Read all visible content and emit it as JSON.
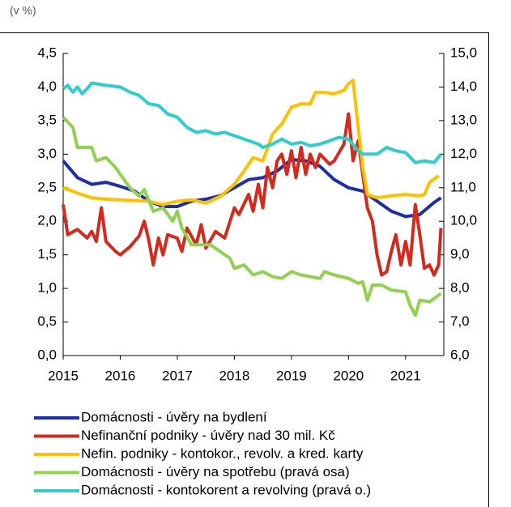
{
  "chart_data": {
    "type": "line",
    "unit_label": "(v %)",
    "xlim": [
      2015,
      2021.67
    ],
    "xticks": [
      2015,
      2016,
      2017,
      2018,
      2019,
      2020,
      2021
    ],
    "ylim": [
      0,
      4.5
    ],
    "yticks": [
      {
        "value": 0,
        "label": "0,0"
      },
      {
        "value": 0.5,
        "label": "0,5"
      },
      {
        "value": 1,
        "label": "1,0"
      },
      {
        "value": 1.5,
        "label": "1,5"
      },
      {
        "value": 2,
        "label": "2,0"
      },
      {
        "value": 2.5,
        "label": "2,5"
      },
      {
        "value": 3,
        "label": "3,0"
      },
      {
        "value": 3.5,
        "label": "3,5"
      },
      {
        "value": 4,
        "label": "4,0"
      },
      {
        "value": 4.5,
        "label": "4,5"
      }
    ],
    "y2lim": [
      6,
      15
    ],
    "y2ticks": [
      {
        "value": 6,
        "label": "6,0"
      },
      {
        "value": 7,
        "label": "7,0"
      },
      {
        "value": 8,
        "label": "8,0"
      },
      {
        "value": 9,
        "label": "9,0"
      },
      {
        "value": 10,
        "label": "10,0"
      },
      {
        "value": 11,
        "label": "11,0"
      },
      {
        "value": 12,
        "label": "12,0"
      },
      {
        "value": 13,
        "label": "13,0"
      },
      {
        "value": 14,
        "label": "14,0"
      },
      {
        "value": 15,
        "label": "15,0"
      }
    ],
    "series": [
      {
        "name": "Domácnosti - úvěry na bydlení",
        "color": "#1f2ea8",
        "x": [
          2015.0,
          2015.25,
          2015.5,
          2015.75,
          2016.0,
          2016.25,
          2016.5,
          2016.75,
          2017.0,
          2017.25,
          2017.5,
          2017.75,
          2018.0,
          2018.25,
          2018.5,
          2018.75,
          2019.0,
          2019.25,
          2019.5,
          2019.75,
          2020.0,
          2020.25,
          2020.5,
          2020.75,
          2021.0,
          2021.25,
          2021.5,
          2021.62
        ],
        "values": [
          2.9,
          2.65,
          2.55,
          2.58,
          2.52,
          2.45,
          2.3,
          2.22,
          2.22,
          2.3,
          2.33,
          2.38,
          2.5,
          2.62,
          2.65,
          2.75,
          2.92,
          2.9,
          2.82,
          2.62,
          2.5,
          2.45,
          2.3,
          2.15,
          2.07,
          2.1,
          2.28,
          2.35
        ]
      },
      {
        "name": "Nefinanční podniky - úvěry nad 30 mil. Kč",
        "color": "#d42a1e",
        "x": [
          2015.0,
          2015.08,
          2015.25,
          2015.42,
          2015.5,
          2015.58,
          2015.67,
          2015.75,
          2015.92,
          2016.0,
          2016.17,
          2016.33,
          2016.42,
          2016.5,
          2016.58,
          2016.67,
          2016.75,
          2016.83,
          2017.0,
          2017.08,
          2017.17,
          2017.33,
          2017.42,
          2017.5,
          2017.67,
          2017.83,
          2018.0,
          2018.08,
          2018.25,
          2018.33,
          2018.42,
          2018.5,
          2018.58,
          2018.67,
          2018.75,
          2018.83,
          2018.92,
          2019.0,
          2019.08,
          2019.17,
          2019.25,
          2019.33,
          2019.42,
          2019.5,
          2019.67,
          2019.75,
          2019.92,
          2020.0,
          2020.08,
          2020.17,
          2020.25,
          2020.33,
          2020.42,
          2020.5,
          2020.58,
          2020.67,
          2020.75,
          2020.83,
          2020.92,
          2021.0,
          2021.08,
          2021.17,
          2021.25,
          2021.33,
          2021.42,
          2021.5,
          2021.58,
          2021.62
        ],
        "values": [
          2.25,
          1.8,
          1.88,
          1.75,
          1.85,
          1.7,
          2.2,
          1.7,
          1.55,
          1.5,
          1.62,
          1.78,
          2.0,
          1.72,
          1.35,
          1.75,
          1.5,
          1.8,
          1.75,
          1.55,
          1.9,
          1.65,
          1.95,
          1.6,
          1.85,
          1.75,
          2.2,
          2.1,
          2.4,
          2.15,
          2.55,
          2.2,
          2.8,
          2.5,
          2.9,
          3.0,
          2.7,
          3.05,
          2.65,
          3.1,
          2.7,
          3.0,
          2.8,
          3.0,
          2.85,
          2.9,
          3.15,
          3.6,
          2.9,
          3.2,
          2.7,
          2.2,
          2.0,
          1.5,
          1.2,
          1.25,
          1.55,
          1.8,
          1.35,
          1.7,
          1.35,
          2.25,
          1.8,
          1.3,
          1.35,
          1.2,
          1.35,
          1.9
        ]
      },
      {
        "name": "Nefin. podniky - kontokor., revolv. a kred. karty",
        "color": "#ffc000",
        "x": [
          2015.0,
          2015.25,
          2015.5,
          2015.75,
          2016.0,
          2016.5,
          2016.75,
          2017.0,
          2017.25,
          2017.5,
          2017.75,
          2018.0,
          2018.17,
          2018.33,
          2018.5,
          2018.67,
          2018.83,
          2019.0,
          2019.17,
          2019.33,
          2019.42,
          2019.58,
          2019.75,
          2019.92,
          2020.0,
          2020.08,
          2020.17,
          2020.25,
          2020.33,
          2020.5,
          2020.75,
          2021.0,
          2021.25,
          2021.33,
          2021.42,
          2021.58
        ],
        "values": [
          2.5,
          2.42,
          2.35,
          2.33,
          2.32,
          2.3,
          2.25,
          2.3,
          2.32,
          2.27,
          2.37,
          2.55,
          2.75,
          2.95,
          2.9,
          3.3,
          3.45,
          3.7,
          3.75,
          3.75,
          3.92,
          3.92,
          3.9,
          3.95,
          4.05,
          4.1,
          3.4,
          2.8,
          2.4,
          2.35,
          2.38,
          2.4,
          2.38,
          2.4,
          2.58,
          2.68
        ]
      },
      {
        "name": "Domácnosti - úvěry na spotřebu (pravá osa)",
        "color": "#92d050",
        "axis": "y2",
        "x": [
          2015.0,
          2015.17,
          2015.25,
          2015.5,
          2015.58,
          2015.75,
          2015.92,
          2016.0,
          2016.17,
          2016.33,
          2016.42,
          2016.58,
          2016.75,
          2016.92,
          2017.0,
          2017.08,
          2017.25,
          2017.42,
          2017.58,
          2017.75,
          2017.92,
          2018.0,
          2018.17,
          2018.33,
          2018.5,
          2018.67,
          2018.83,
          2019.0,
          2019.17,
          2019.5,
          2019.58,
          2019.75,
          2020.0,
          2020.17,
          2020.25,
          2020.33,
          2020.42,
          2020.58,
          2020.75,
          2021.0,
          2021.08,
          2021.17,
          2021.25,
          2021.42,
          2021.62
        ],
        "values": [
          13.1,
          12.8,
          12.2,
          12.2,
          11.8,
          11.9,
          11.6,
          11.4,
          11.0,
          10.75,
          10.95,
          10.3,
          10.4,
          10.0,
          10.3,
          9.8,
          9.3,
          9.3,
          9.3,
          9.1,
          8.9,
          8.6,
          8.7,
          8.4,
          8.5,
          8.35,
          8.3,
          8.5,
          8.4,
          8.3,
          8.5,
          8.4,
          8.3,
          8.15,
          8.2,
          7.65,
          8.1,
          8.1,
          7.95,
          7.9,
          7.5,
          7.2,
          7.65,
          7.6,
          7.85
        ]
      },
      {
        "name": "Domácnosti - kontokorent a revolving (pravá o.)",
        "color": "#33cccc",
        "axis": "y2",
        "x": [
          2015.0,
          2015.08,
          2015.17,
          2015.25,
          2015.33,
          2015.42,
          2015.5,
          2015.75,
          2016.0,
          2016.17,
          2016.33,
          2016.5,
          2016.67,
          2016.83,
          2017.0,
          2017.17,
          2017.33,
          2017.5,
          2017.67,
          2017.83,
          2018.0,
          2018.25,
          2018.42,
          2018.5,
          2018.67,
          2018.83,
          2019.0,
          2019.17,
          2019.33,
          2019.5,
          2019.67,
          2019.83,
          2020.0,
          2020.17,
          2020.25,
          2020.5,
          2020.67,
          2020.83,
          2021.0,
          2021.17,
          2021.33,
          2021.5,
          2021.62
        ],
        "values": [
          13.95,
          14.05,
          13.85,
          14.0,
          13.8,
          13.95,
          14.12,
          14.05,
          14.0,
          13.85,
          13.75,
          13.5,
          13.45,
          13.2,
          13.1,
          12.8,
          12.65,
          12.7,
          12.6,
          12.65,
          12.55,
          12.4,
          12.3,
          12.2,
          12.3,
          12.45,
          12.3,
          12.35,
          12.25,
          12.3,
          12.4,
          12.5,
          12.45,
          12.1,
          12.0,
          12.0,
          12.2,
          12.1,
          12.05,
          11.75,
          11.8,
          11.75,
          12.0
        ]
      }
    ]
  }
}
